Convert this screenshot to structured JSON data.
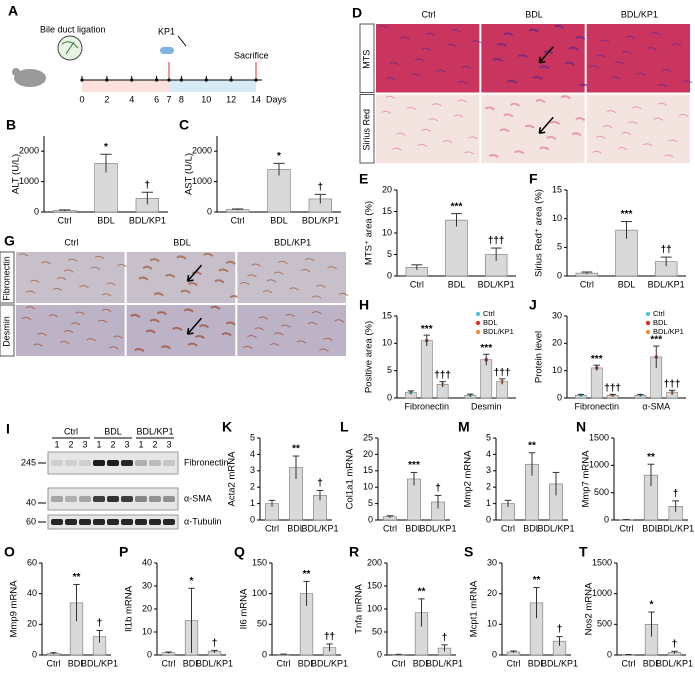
{
  "timeline": {
    "letter": "A",
    "ligation": "Bile duct ligation",
    "drug": "KP1",
    "end": "Sacrifice",
    "unit": "Days",
    "days": [
      0,
      2,
      4,
      6,
      7,
      8,
      10,
      12,
      14
    ]
  },
  "stain_d": {
    "letter": "D",
    "columns": [
      "Ctrl",
      "BDL",
      "BDL/KP1"
    ],
    "rows": [
      "MTS",
      "Sirius Red"
    ]
  },
  "stain_g": {
    "letter": "G",
    "columns": [
      "Ctrl",
      "BDL",
      "BDL/KP1"
    ],
    "rows": [
      "Fibronectin",
      "Desmin"
    ]
  },
  "blot": {
    "letter": "I",
    "groups": [
      "Ctrl",
      "BDL",
      "BDL/KP1"
    ],
    "lanes": [
      "1",
      "2",
      "3"
    ],
    "markers": [
      245,
      40,
      60
    ],
    "proteins": [
      "Fibronectin",
      "α-SMA",
      "α-Tubulin"
    ]
  },
  "chart_data": [
    {
      "type": "bar",
      "letter": "B",
      "ylabel": "ALT (U/L)",
      "categories": [
        "Ctrl",
        "BDL",
        "BDL/KP1"
      ],
      "values": [
        50,
        1600,
        450
      ],
      "errors": [
        20,
        300,
        200
      ],
      "annotations": [
        null,
        "*",
        "†"
      ],
      "color": "#d9d9d9",
      "ylim": [
        0,
        2500
      ],
      "yticks": [
        0,
        1000,
        2000
      ]
    },
    {
      "type": "bar",
      "letter": "C",
      "ylabel": "AST (U/L)",
      "categories": [
        "Ctrl",
        "BDL",
        "BDL/KP1"
      ],
      "values": [
        80,
        1400,
        430
      ],
      "errors": [
        20,
        200,
        150
      ],
      "annotations": [
        null,
        "*",
        "†"
      ],
      "color": "#d9d9d9",
      "ylim": [
        0,
        2500
      ],
      "yticks": [
        0,
        1000,
        2000
      ]
    },
    {
      "type": "bar",
      "letter": "E",
      "ylabel": "MTS⁺ area (%)",
      "categories": [
        "Ctrl",
        "BDL",
        "BDL/KP1"
      ],
      "values": [
        2,
        13,
        5
      ],
      "errors": [
        0.6,
        1.5,
        1.5
      ],
      "annotations": [
        null,
        "***",
        "†††"
      ],
      "color": "#d9d9d9",
      "ylim": [
        0,
        20
      ],
      "yticks": [
        0,
        5,
        10,
        15,
        20
      ]
    },
    {
      "type": "bar",
      "letter": "F",
      "ylabel": "Sirius Red⁺ area (%)",
      "categories": [
        "Ctrl",
        "BDL",
        "BDL/KP1"
      ],
      "values": [
        0.5,
        8,
        2.5
      ],
      "errors": [
        0.2,
        1.5,
        0.8
      ],
      "annotations": [
        null,
        "***",
        "††"
      ],
      "color": "#d9d9d9",
      "ylim": [
        0,
        15
      ],
      "yticks": [
        0,
        5,
        10,
        15
      ]
    },
    {
      "type": "grouped",
      "letter": "H",
      "ylabel": "Positive area (%)",
      "categories": [
        "Fibronectin",
        "Desmin"
      ],
      "series": [
        {
          "name": "Ctrl",
          "color": "#4cc3d9",
          "values": [
            1,
            0.5
          ],
          "errors": [
            0.3,
            0.2
          ]
        },
        {
          "name": "BDL",
          "color": "#e0302a",
          "values": [
            10.5,
            7
          ],
          "errors": [
            1,
            1
          ],
          "annotations": [
            "***",
            "***"
          ]
        },
        {
          "name": "BDL/KP1",
          "color": "#f08a3c",
          "values": [
            2.5,
            3
          ],
          "errors": [
            0.5,
            0.5
          ],
          "annotations": [
            "†††",
            "†††"
          ]
        }
      ],
      "bar_color": "#d9d9d9",
      "ylim": [
        0,
        15
      ],
      "yticks": [
        0,
        5,
        10,
        15
      ]
    },
    {
      "type": "grouped",
      "letter": "J",
      "ylabel": "Protein level",
      "categories": [
        "Fibronectin",
        "α-SMA"
      ],
      "series": [
        {
          "name": "Ctrl",
          "color": "#4cc3d9",
          "values": [
            1,
            1
          ],
          "errors": [
            0.3,
            0.3
          ]
        },
        {
          "name": "BDL",
          "color": "#e0302a",
          "values": [
            11,
            15
          ],
          "errors": [
            1,
            4
          ]
        },
        {
          "name": "BDL/KP1",
          "color": "#f08a3c",
          "values": [
            1,
            2
          ],
          "errors": [
            0.3,
            0.8
          ],
          "annotations": [
            "†††",
            "†††"
          ]
        }
      ],
      "bar_annotations": [
        "***",
        "***"
      ],
      "bar_color": "#d9d9d9",
      "ylim": [
        0,
        30
      ],
      "yticks": [
        0,
        10,
        20,
        30
      ]
    },
    {
      "type": "bar",
      "letter": "K",
      "ylabel": "Acta2 mRNA",
      "categories": [
        "Ctrl",
        "BDL",
        "BDL/KP1"
      ],
      "values": [
        1,
        3.2,
        1.5
      ],
      "errors": [
        0.2,
        0.7,
        0.3
      ],
      "annotations": [
        null,
        "**",
        "†"
      ],
      "color": "#d9d9d9",
      "ylim": [
        0,
        5
      ],
      "yticks": [
        0,
        1,
        2,
        3,
        4,
        5
      ]
    },
    {
      "type": "bar",
      "letter": "L",
      "ylabel": "Col1a1 mRNA",
      "categories": [
        "Ctrl",
        "BDL",
        "BDL/KP1"
      ],
      "values": [
        1,
        12.5,
        5.5
      ],
      "errors": [
        0.3,
        2,
        2
      ],
      "annotations": [
        null,
        "***",
        "†"
      ],
      "color": "#d9d9d9",
      "ylim": [
        0,
        25
      ],
      "yticks": [
        0,
        5,
        10,
        15,
        20,
        25
      ]
    },
    {
      "type": "bar",
      "letter": "M",
      "ylabel": "Mmp2 mRNA",
      "categories": [
        "Ctrl",
        "BDL",
        "BDL/KP1"
      ],
      "values": [
        1,
        3.4,
        2.2
      ],
      "errors": [
        0.2,
        0.7,
        0.7
      ],
      "annotations": [
        null,
        "**",
        null
      ],
      "color": "#d9d9d9",
      "ylim": [
        0,
        5
      ],
      "yticks": [
        0,
        1,
        2,
        3,
        4,
        5
      ]
    },
    {
      "type": "bar",
      "letter": "N",
      "ylabel": "Mmp7 mRNA",
      "categories": [
        "Ctrl",
        "BDL",
        "BDL/KP1"
      ],
      "values": [
        5,
        820,
        250
      ],
      "errors": [
        3,
        200,
        100
      ],
      "annotations": [
        null,
        "**",
        "†"
      ],
      "color": "#d9d9d9",
      "ylim": [
        0,
        1500
      ],
      "yticks": [
        0,
        500,
        1000,
        1500
      ]
    },
    {
      "type": "bar",
      "letter": "O",
      "ylabel": "Mmp9 mRNA",
      "categories": [
        "Ctrl",
        "BDL",
        "BDL/KP1"
      ],
      "values": [
        1,
        34,
        12
      ],
      "errors": [
        0.5,
        12,
        4
      ],
      "annotations": [
        null,
        "**",
        "†"
      ],
      "color": "#d9d9d9",
      "ylim": [
        0,
        60
      ],
      "yticks": [
        0,
        20,
        40,
        60
      ]
    },
    {
      "type": "bar",
      "letter": "P",
      "ylabel": "Il1b mRNA",
      "categories": [
        "Ctrl",
        "BDL",
        "BDL/KP1"
      ],
      "values": [
        1,
        15,
        1.5
      ],
      "errors": [
        0.3,
        14,
        0.5
      ],
      "annotations": [
        null,
        "*",
        "†"
      ],
      "color": "#d9d9d9",
      "ylim": [
        0,
        40
      ],
      "yticks": [
        0,
        10,
        20,
        30,
        40
      ]
    },
    {
      "type": "bar",
      "letter": "Q",
      "ylabel": "Il6 mRNA",
      "categories": [
        "Ctrl",
        "BDL",
        "BDL/KP1"
      ],
      "values": [
        1,
        100,
        12
      ],
      "errors": [
        0.5,
        20,
        6
      ],
      "annotations": [
        null,
        "**",
        "††"
      ],
      "color": "#d9d9d9",
      "ylim": [
        0,
        150
      ],
      "yticks": [
        0,
        50,
        100,
        150
      ]
    },
    {
      "type": "bar",
      "letter": "R",
      "ylabel": "Tnfa mRNA",
      "categories": [
        "Ctrl",
        "BDL",
        "BDL/KP1"
      ],
      "values": [
        1,
        92,
        15
      ],
      "errors": [
        0.5,
        30,
        7
      ],
      "annotations": [
        null,
        "**",
        "†"
      ],
      "color": "#d9d9d9",
      "ylim": [
        0,
        200
      ],
      "yticks": [
        0,
        50,
        100,
        150,
        200
      ]
    },
    {
      "type": "bar",
      "letter": "S",
      "ylabel": "Mcpt1 mRNA",
      "categories": [
        "Ctrl",
        "BDL",
        "BDL/KP1"
      ],
      "values": [
        1,
        17,
        4.5
      ],
      "errors": [
        0.3,
        5,
        1.5
      ],
      "annotations": [
        null,
        "**",
        "†"
      ],
      "color": "#d9d9d9",
      "ylim": [
        0,
        30
      ],
      "yticks": [
        0,
        10,
        20,
        30
      ]
    },
    {
      "type": "bar",
      "letter": "T",
      "ylabel": "Nos2 mRNA",
      "categories": [
        "Ctrl",
        "BDL",
        "BDL/KP1"
      ],
      "values": [
        5,
        500,
        40
      ],
      "errors": [
        3,
        200,
        20
      ],
      "annotations": [
        null,
        "*",
        "†"
      ],
      "color": "#d9d9d9",
      "ylim": [
        0,
        1500
      ],
      "yticks": [
        0,
        500,
        1000,
        1500
      ]
    }
  ]
}
